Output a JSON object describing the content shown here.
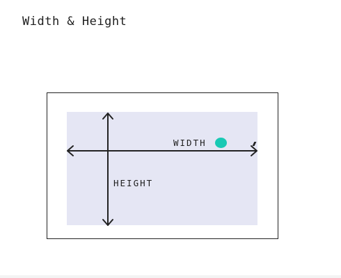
{
  "page": {
    "title": "Width & Height"
  },
  "diagram": {
    "width_label": "WIDTH",
    "height_label": "HEIGHT"
  },
  "colors": {
    "frame_border": "#222222",
    "fill": "#e5e6f4",
    "arrow": "#222222",
    "cursor_dot": "#19c9b4"
  },
  "icons": {
    "pointer": "teal-dot-cursor-icon"
  }
}
